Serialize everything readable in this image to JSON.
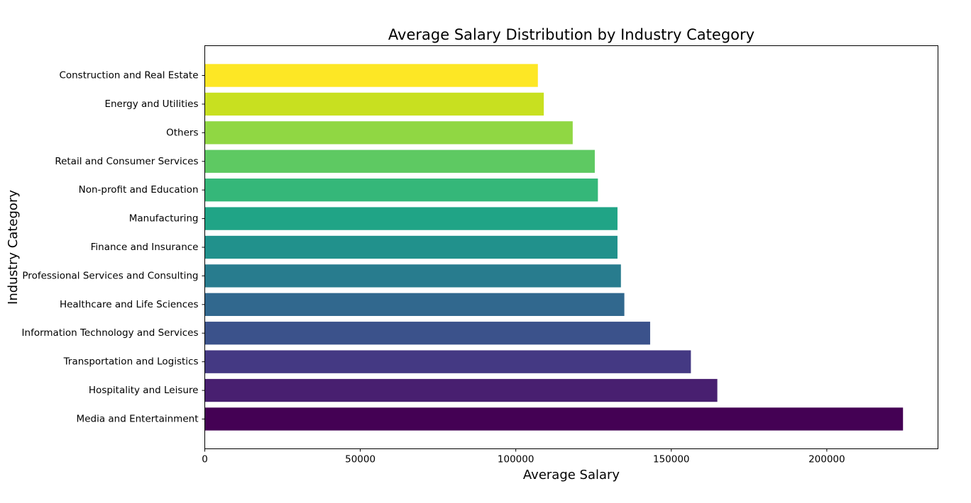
{
  "chart_data": {
    "type": "bar",
    "orientation": "horizontal",
    "title": "Average Salary Distribution by Industry Category",
    "xlabel": "Average Salary",
    "ylabel": "Industry Category",
    "categories": [
      "Media and Entertainment",
      "Hospitality and Leisure",
      "Transportation and Logistics",
      "Information Technology and Services",
      "Healthcare and Life Sciences",
      "Professional Services and Consulting",
      "Finance and Insurance",
      "Manufacturing",
      "Non-profit and Education",
      "Retail and Consumer Services",
      "Others",
      "Energy and Utilities",
      "Construction and Real Estate"
    ],
    "values": [
      224500,
      164800,
      156300,
      143200,
      134900,
      133800,
      132700,
      132700,
      126400,
      125400,
      118300,
      109000,
      107100
    ],
    "colors": [
      "#440154",
      "#481f70",
      "#443983",
      "#3b528b",
      "#31688e",
      "#287c8e",
      "#21918c",
      "#20a486",
      "#35b779",
      "#5ec962",
      "#90d743",
      "#c8e020",
      "#fde725"
    ],
    "xlim": [
      0,
      235750
    ],
    "xticks": [
      0,
      50000,
      100000,
      150000,
      200000
    ],
    "xtick_labels": [
      "0",
      "50000",
      "100000",
      "150000",
      "200000"
    ],
    "grid": false,
    "legend": "none"
  }
}
